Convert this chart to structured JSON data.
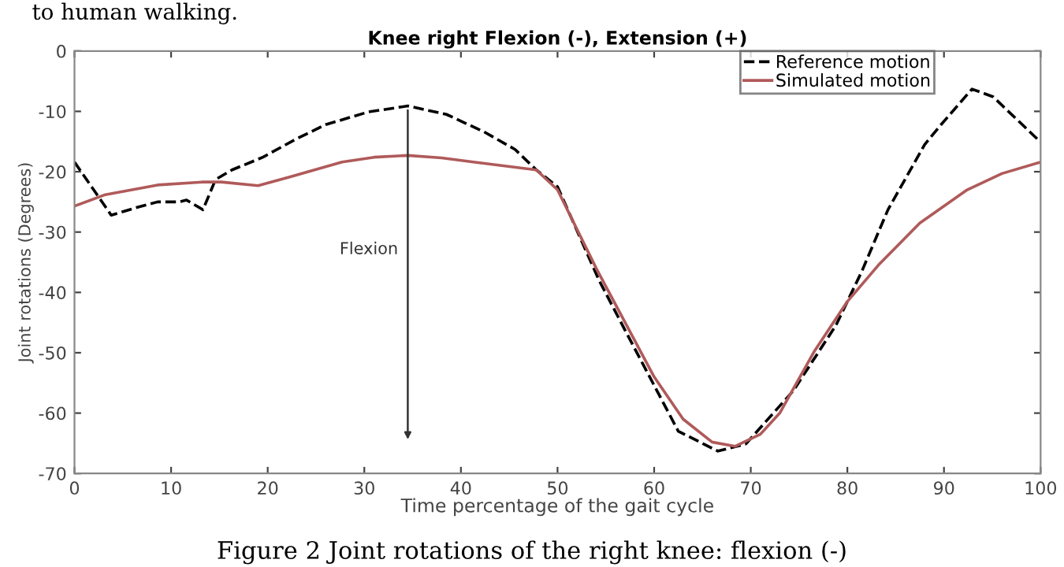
{
  "chart_data": {
    "type": "line",
    "title": "Knee right Flexion (-), Extension (+)",
    "xlabel": "Time percentage of the gait cycle",
    "ylabel": "Joint rotations (Degrees)",
    "series": [
      {
        "name": "Reference motion",
        "color": "#000000",
        "line_style": "dashed",
        "x": [
          0,
          3.8,
          6.5,
          8.6,
          10.8,
          11.6,
          13.3,
          14.6,
          16.3,
          19.5,
          22.8,
          26,
          30.4,
          34.5,
          38.5,
          42.4,
          45.6,
          47.8,
          50,
          54.3,
          57,
          62.5,
          66.6,
          69.5,
          74.4,
          78.8,
          81.5,
          84.2,
          88,
          89.7,
          92.9,
          95.1,
          100
        ],
        "values": [
          -18.4,
          -27.2,
          -25.9,
          -25,
          -25,
          -24.7,
          -26.3,
          -21.3,
          -19.7,
          -17.6,
          -14.7,
          -12.2,
          -10.1,
          -9.1,
          -10.5,
          -13.4,
          -16.3,
          -19.7,
          -22.5,
          -38,
          -46.3,
          -63,
          -66.3,
          -65.1,
          -56.3,
          -45.5,
          -36.5,
          -26.3,
          -15.5,
          -12.2,
          -6.3,
          -7.6,
          -15.1
        ]
      },
      {
        "name": "Simulated motion",
        "color": "#b05a5a",
        "line_style": "solid",
        "x": [
          0,
          3.2,
          8.6,
          13.3,
          15.2,
          19,
          22.2,
          27.7,
          31,
          34.5,
          38,
          41.3,
          47.8,
          50,
          54,
          57,
          60,
          63,
          66,
          68.4,
          71,
          73,
          76.6,
          80,
          83.2,
          87.5,
          92.4,
          96,
          100
        ],
        "values": [
          -25.7,
          -23.8,
          -22.2,
          -21.7,
          -21.7,
          -22.3,
          -20.9,
          -18.4,
          -17.6,
          -17.3,
          -17.7,
          -18.4,
          -19.7,
          -23,
          -36,
          -45,
          -54,
          -61,
          -64.8,
          -65.5,
          -63.5,
          -60,
          -49.7,
          -41.5,
          -35.5,
          -28.5,
          -23,
          -20.3,
          -18.4
        ]
      }
    ],
    "xlim": [
      0,
      100
    ],
    "xticks": [
      0,
      10,
      20,
      30,
      40,
      50,
      60,
      70,
      80,
      90,
      100
    ],
    "ylim": [
      -70,
      0
    ],
    "yticks": [
      -70,
      -60,
      -50,
      -40,
      -30,
      -20,
      -10,
      0
    ],
    "grid": false,
    "legend": "top right",
    "marker": "none",
    "annotations": [
      "Flexion",
      "to human walking.",
      "Figure 2 Joint rotations of the right knee: flexion (-)"
    ]
  }
}
